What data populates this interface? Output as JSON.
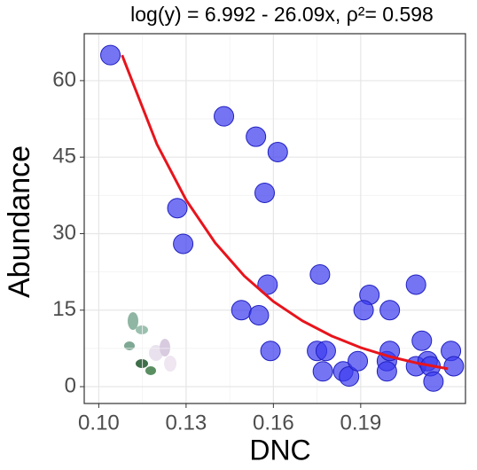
{
  "chart_data": {
    "type": "scatter",
    "title": "log(y) = 6.992 - 26.09x, ρ²= 0.598",
    "xlabel": "DNC",
    "ylabel": "Abundance",
    "x": [
      0.104,
      0.143,
      0.154,
      0.1615,
      0.157,
      0.127,
      0.129,
      0.158,
      0.176,
      0.149,
      0.155,
      0.159,
      0.193,
      0.191,
      0.2,
      0.209,
      0.175,
      0.178,
      0.177,
      0.184,
      0.186,
      0.189,
      0.199,
      0.2,
      0.199,
      0.211,
      0.209,
      0.213,
      0.214,
      0.215,
      0.221,
      0.222
    ],
    "values": [
      65,
      53,
      49,
      46,
      38,
      35,
      28,
      20,
      22,
      15,
      14,
      7,
      18,
      15,
      15,
      20,
      7,
      7,
      3,
      3,
      2,
      5,
      5,
      7,
      3,
      9,
      4,
      5,
      4,
      1,
      7,
      4
    ],
    "color": "#3a3af0",
    "fit": {
      "color": "#e8141c",
      "x": [
        0.108,
        0.12,
        0.13,
        0.14,
        0.15,
        0.16,
        0.17,
        0.18,
        0.19,
        0.2,
        0.21,
        0.22
      ],
      "values": [
        65.0,
        47.5,
        36.6,
        28.2,
        21.7,
        16.7,
        12.9,
        9.94,
        7.65,
        5.89,
        4.54,
        3.5
      ]
    },
    "xlim": [
      0.095,
      0.226
    ],
    "ylim": [
      -3.3,
      69.2
    ],
    "xticks": [
      {
        "value": 0.1,
        "label": "0.10"
      },
      0.13,
      0.16,
      0.19
    ],
    "yticks": [
      0,
      15,
      30,
      45,
      60
    ],
    "grid": true
  }
}
